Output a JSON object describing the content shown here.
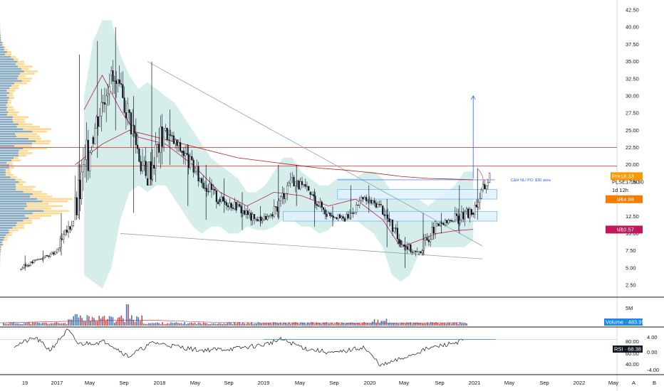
{
  "chart_data": {
    "type": "candlestick",
    "symbol": "PLSE",
    "interval": "1d 12h",
    "y_axis": {
      "ticks": [
        "42.50",
        "40.00",
        "37.50",
        "35.00",
        "32.50",
        "30.00",
        "27.50",
        "25.00",
        "22.50",
        "20.00",
        "17.50",
        "15.00",
        "12.50",
        "10.00",
        "7.50",
        "5.00",
        "2.50"
      ],
      "range": [
        0.5,
        44
      ]
    },
    "x_axis": {
      "labels": [
        "19",
        "2017",
        "May",
        "Sep",
        "2018",
        "May",
        "Sep",
        "2019",
        "May",
        "Sep",
        "2020",
        "May",
        "Sep",
        "2021",
        "May",
        "Sep",
        "2022",
        "May"
      ]
    },
    "price_tags": [
      {
        "label": "Pre",
        "value": "18.33",
        "price": 18.33,
        "color": "#ff9800"
      },
      {
        "label": "PLSE",
        "value": "18.30",
        "price": 17.5,
        "color": null
      },
      {
        "label": "1d 12h",
        "value": "",
        "price": 16.3,
        "color": null
      },
      {
        "label": "VWAP",
        "value": "14.98",
        "price": 14.98,
        "color": "#f57c00"
      },
      {
        "label": "VWAP",
        "value": "10.57",
        "price": 10.57,
        "color": "#c2185b"
      }
    ],
    "horizontal_levels": [
      22.5,
      19.8
    ],
    "zones": [
      {
        "from": "2019-08",
        "to": "2021-01",
        "low": 15.0,
        "high": 16.4
      },
      {
        "from": "2019-02",
        "to": "2021-01",
        "low": 11.8,
        "high": 13.2
      }
    ],
    "annotations": [
      {
        "text": "C&H NL/ PO: $30 area",
        "date": "2020-12",
        "price": 17.8
      }
    ],
    "wedge_lines": [
      {
        "from": [
          "2017-11",
          35
        ],
        "to": [
          "2020-12",
          8.2
        ]
      },
      {
        "from": [
          "2017-08",
          10
        ],
        "to": [
          "2020-12",
          6.3
        ]
      }
    ],
    "projection_arrow": {
      "date": "2020-11",
      "from": 18,
      "to": 30
    },
    "candles_approx_monthly": [
      {
        "t": "2016-09",
        "o": 4.8,
        "h": 6.8,
        "l": 4.6,
        "c": 6.2
      },
      {
        "t": "2016-11",
        "o": 6.2,
        "h": 7.5,
        "l": 5.8,
        "c": 7.2
      },
      {
        "t": "2017-01",
        "o": 7.2,
        "h": 13,
        "l": 6.8,
        "c": 12
      },
      {
        "t": "2017-03",
        "o": 12,
        "h": 36,
        "l": 12,
        "c": 24
      },
      {
        "t": "2017-05",
        "o": 24,
        "h": 38,
        "l": 21,
        "c": 33
      },
      {
        "t": "2017-07",
        "o": 33,
        "h": 40,
        "l": 25,
        "c": 28
      },
      {
        "t": "2017-09",
        "o": 28,
        "h": 30,
        "l": 13,
        "c": 18
      },
      {
        "t": "2017-11",
        "o": 18,
        "h": 35,
        "l": 17,
        "c": 25
      },
      {
        "t": "2018-01",
        "o": 25,
        "h": 28,
        "l": 20,
        "c": 22
      },
      {
        "t": "2018-03",
        "o": 22,
        "h": 23,
        "l": 14,
        "c": 18
      },
      {
        "t": "2018-05",
        "o": 18,
        "h": 20,
        "l": 12,
        "c": 15
      },
      {
        "t": "2018-07",
        "o": 15,
        "h": 18,
        "l": 13,
        "c": 14
      },
      {
        "t": "2018-09",
        "o": 14,
        "h": 16,
        "l": 10.5,
        "c": 12
      },
      {
        "t": "2018-11",
        "o": 12,
        "h": 14,
        "l": 11,
        "c": 12.5
      },
      {
        "t": "2019-01",
        "o": 12.5,
        "h": 20,
        "l": 12,
        "c": 18
      },
      {
        "t": "2019-03",
        "o": 18,
        "h": 20,
        "l": 14,
        "c": 16
      },
      {
        "t": "2019-05",
        "o": 16,
        "h": 16.5,
        "l": 11,
        "c": 13
      },
      {
        "t": "2019-07",
        "o": 13,
        "h": 14,
        "l": 11,
        "c": 12
      },
      {
        "t": "2019-09",
        "o": 12,
        "h": 17,
        "l": 12,
        "c": 15
      },
      {
        "t": "2019-11",
        "o": 15,
        "h": 17,
        "l": 13,
        "c": 14
      },
      {
        "t": "2020-01",
        "o": 14,
        "h": 15,
        "l": 8,
        "c": 9
      },
      {
        "t": "2020-03",
        "o": 9,
        "h": 9.5,
        "l": 5,
        "c": 7
      },
      {
        "t": "2020-05",
        "o": 7,
        "h": 13,
        "l": 6.8,
        "c": 11
      },
      {
        "t": "2020-07",
        "o": 11,
        "h": 13,
        "l": 10,
        "c": 12
      },
      {
        "t": "2020-09",
        "o": 12,
        "h": 17,
        "l": 10,
        "c": 13
      },
      {
        "t": "2020-11",
        "o": 13,
        "h": 19.5,
        "l": 12,
        "c": 18.3
      }
    ],
    "volume_pane": {
      "label": "Volume",
      "value": "483.958K",
      "scale_label": "5M"
    },
    "rsi_pane": {
      "label": "RSI",
      "value": "68.38",
      "ticks": [
        "80.00",
        "60.00",
        "40.00"
      ],
      "ticks_right": [
        "4.00",
        "0.00",
        "-4.00"
      ],
      "level": 70
    },
    "corner_buttons": [
      "A",
      "B"
    ]
  }
}
